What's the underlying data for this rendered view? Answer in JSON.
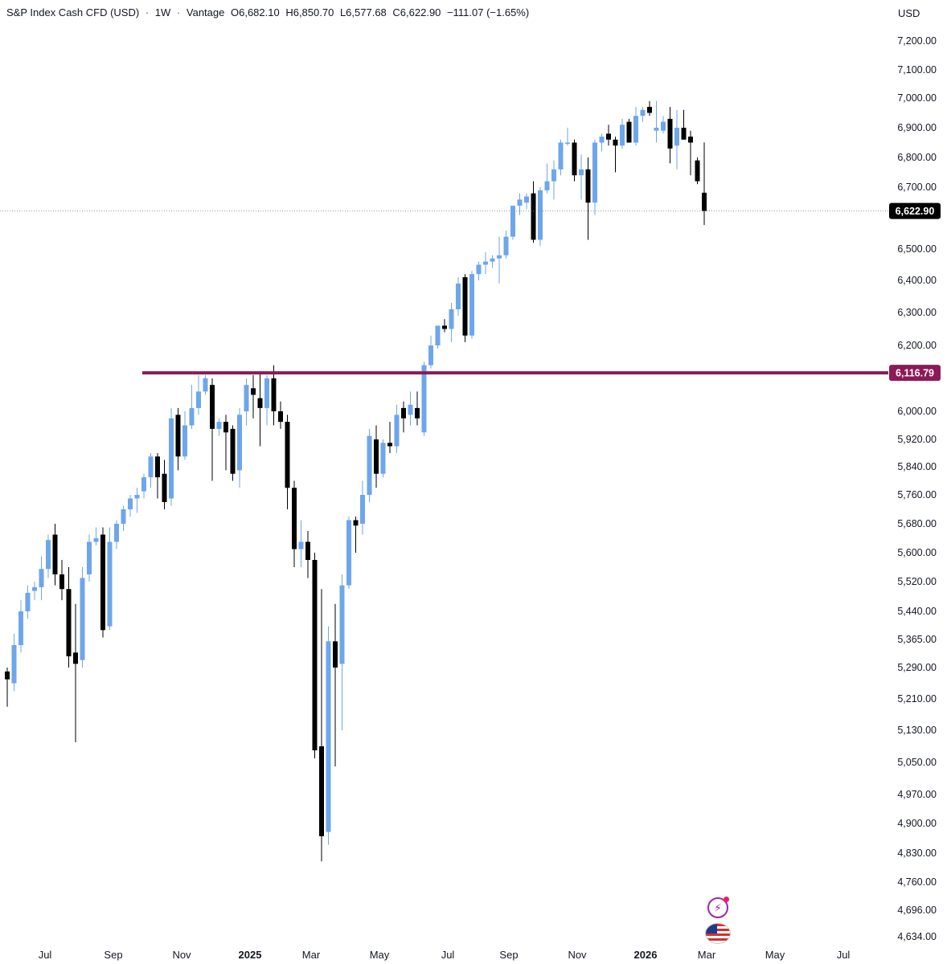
{
  "header": {
    "symbol": "S&P Index Cash CFD (USD)",
    "interval": "1W",
    "source": "Vantage",
    "open": "O6,682.10",
    "high": "H6,850.70",
    "low": "L6,577.68",
    "close": "C6,622.90",
    "change": "−111.07 (−1.65%)",
    "separator": "·"
  },
  "currency": "USD",
  "colors": {
    "up": "#6ea6ea",
    "down": "#000000",
    "hline": "#8b1a55",
    "last_price_tag": "#000000",
    "hline_tag": "#8b1a55"
  },
  "icons": [
    "bolt-icon",
    "us-flag-icon"
  ],
  "chart_data": {
    "type": "candlestick",
    "y_tick_labels": [
      "7,200.00",
      "7,100.00",
      "7,000.00",
      "6,900.00",
      "6,800.00",
      "6,700.00",
      "6,500.00",
      "6,400.00",
      "6,300.00",
      "6,200.00",
      "6,000.00",
      "5,920.00",
      "5,840.00",
      "5,760.00",
      "5,680.00",
      "5,600.00",
      "5,520.00",
      "5,440.00",
      "5,365.00",
      "5,290.00",
      "5,210.00",
      "5,130.00",
      "5,050.00",
      "4,970.00",
      "4,900.00",
      "4,830.00",
      "4,760.00",
      "4,696.00",
      "4,634.00"
    ],
    "y_tick_values": [
      7200,
      7100,
      7000,
      6900,
      6800,
      6700,
      6500,
      6400,
      6300,
      6200,
      6000,
      5920,
      5840,
      5760,
      5680,
      5600,
      5520,
      5440,
      5365,
      5290,
      5210,
      5130,
      5050,
      4970,
      4900,
      4830,
      4760,
      4696,
      4634
    ],
    "x_tick_labels": [
      "Jul",
      "Sep",
      "Nov",
      "2025",
      "Mar",
      "May",
      "Jul",
      "Sep",
      "Nov",
      "2026",
      "Mar",
      "May",
      "Jul"
    ],
    "x_tick_bold": [
      false,
      false,
      false,
      true,
      false,
      false,
      false,
      false,
      false,
      true,
      false,
      false,
      false
    ],
    "last_price": {
      "label": "6,622.90",
      "value": 6622.9
    },
    "horizontal_line": {
      "label": "6,116.79",
      "value": 6116.79
    },
    "candles": [
      {
        "o": 5280,
        "h": 5290,
        "l": 5190,
        "c": 5260
      },
      {
        "o": 5250,
        "h": 5380,
        "l": 5230,
        "c": 5350
      },
      {
        "o": 5350,
        "h": 5470,
        "l": 5330,
        "c": 5440
      },
      {
        "o": 5440,
        "h": 5510,
        "l": 5420,
        "c": 5490
      },
      {
        "o": 5495,
        "h": 5520,
        "l": 5470,
        "c": 5505
      },
      {
        "o": 5505,
        "h": 5590,
        "l": 5470,
        "c": 5555
      },
      {
        "o": 5555,
        "h": 5650,
        "l": 5530,
        "c": 5635
      },
      {
        "o": 5650,
        "h": 5680,
        "l": 5510,
        "c": 5540
      },
      {
        "o": 5540,
        "h": 5580,
        "l": 5470,
        "c": 5500
      },
      {
        "o": 5500,
        "h": 5560,
        "l": 5290,
        "c": 5320
      },
      {
        "o": 5330,
        "h": 5460,
        "l": 5100,
        "c": 5300
      },
      {
        "o": 5310,
        "h": 5560,
        "l": 5290,
        "c": 5530
      },
      {
        "o": 5540,
        "h": 5650,
        "l": 5520,
        "c": 5630
      },
      {
        "o": 5630,
        "h": 5670,
        "l": 5620,
        "c": 5640
      },
      {
        "o": 5650,
        "h": 5670,
        "l": 5370,
        "c": 5390
      },
      {
        "o": 5400,
        "h": 5670,
        "l": 5390,
        "c": 5630
      },
      {
        "o": 5630,
        "h": 5690,
        "l": 5610,
        "c": 5680
      },
      {
        "o": 5680,
        "h": 5730,
        "l": 5660,
        "c": 5720
      },
      {
        "o": 5720,
        "h": 5760,
        "l": 5700,
        "c": 5750
      },
      {
        "o": 5750,
        "h": 5780,
        "l": 5710,
        "c": 5760
      },
      {
        "o": 5770,
        "h": 5820,
        "l": 5750,
        "c": 5810
      },
      {
        "o": 5810,
        "h": 5880,
        "l": 5780,
        "c": 5870
      },
      {
        "o": 5870,
        "h": 5880,
        "l": 5750,
        "c": 5810
      },
      {
        "o": 5820,
        "h": 5860,
        "l": 5720,
        "c": 5740
      },
      {
        "o": 5750,
        "h": 6010,
        "l": 5730,
        "c": 5980
      },
      {
        "o": 5990,
        "h": 6010,
        "l": 5830,
        "c": 5870
      },
      {
        "o": 5870,
        "h": 6000,
        "l": 5860,
        "c": 5960
      },
      {
        "o": 5960,
        "h": 6080,
        "l": 5950,
        "c": 6010
      },
      {
        "o": 6010,
        "h": 6110,
        "l": 5990,
        "c": 6060
      },
      {
        "o": 6060,
        "h": 6110,
        "l": 6050,
        "c": 6100
      },
      {
        "o": 6080,
        "h": 6100,
        "l": 5800,
        "c": 5950
      },
      {
        "o": 5950,
        "h": 5980,
        "l": 5930,
        "c": 5970
      },
      {
        "o": 5970,
        "h": 5990,
        "l": 5830,
        "c": 5940
      },
      {
        "o": 5950,
        "h": 5960,
        "l": 5800,
        "c": 5820
      },
      {
        "o": 5830,
        "h": 6010,
        "l": 5780,
        "c": 5990
      },
      {
        "o": 6000,
        "h": 6100,
        "l": 5960,
        "c": 6080
      },
      {
        "o": 6070,
        "h": 6110,
        "l": 5980,
        "c": 6050
      },
      {
        "o": 6040,
        "h": 6120,
        "l": 5900,
        "c": 6010
      },
      {
        "o": 6010,
        "h": 6110,
        "l": 5960,
        "c": 6100
      },
      {
        "o": 6100,
        "h": 6140,
        "l": 5960,
        "c": 6000
      },
      {
        "o": 6000,
        "h": 6030,
        "l": 5950,
        "c": 5970
      },
      {
        "o": 5970,
        "h": 5990,
        "l": 5720,
        "c": 5780
      },
      {
        "o": 5780,
        "h": 5800,
        "l": 5560,
        "c": 5610
      },
      {
        "o": 5610,
        "h": 5690,
        "l": 5560,
        "c": 5630
      },
      {
        "o": 5630,
        "h": 5660,
        "l": 5530,
        "c": 5580
      },
      {
        "o": 5580,
        "h": 5600,
        "l": 5060,
        "c": 5080
      },
      {
        "o": 5090,
        "h": 5500,
        "l": 4810,
        "c": 4870
      },
      {
        "o": 4880,
        "h": 5400,
        "l": 4850,
        "c": 5360
      },
      {
        "o": 5360,
        "h": 5460,
        "l": 5040,
        "c": 5290
      },
      {
        "o": 5300,
        "h": 5540,
        "l": 5130,
        "c": 5510
      },
      {
        "o": 5510,
        "h": 5700,
        "l": 5500,
        "c": 5690
      },
      {
        "o": 5690,
        "h": 5700,
        "l": 5600,
        "c": 5675
      },
      {
        "o": 5680,
        "h": 5800,
        "l": 5650,
        "c": 5760
      },
      {
        "o": 5760,
        "h": 5950,
        "l": 5740,
        "c": 5930
      },
      {
        "o": 5920,
        "h": 5960,
        "l": 5780,
        "c": 5820
      },
      {
        "o": 5820,
        "h": 5920,
        "l": 5810,
        "c": 5910
      },
      {
        "o": 5910,
        "h": 5970,
        "l": 5880,
        "c": 5900
      },
      {
        "o": 5900,
        "h": 6020,
        "l": 5880,
        "c": 5990
      },
      {
        "o": 6010,
        "h": 6030,
        "l": 5940,
        "c": 5980
      },
      {
        "o": 5990,
        "h": 6060,
        "l": 5960,
        "c": 6020
      },
      {
        "o": 6010,
        "h": 6060,
        "l": 5960,
        "c": 5980
      },
      {
        "o": 5940,
        "h": 6150,
        "l": 5930,
        "c": 6140
      },
      {
        "o": 6140,
        "h": 6230,
        "l": 6130,
        "c": 6200
      },
      {
        "o": 6200,
        "h": 6260,
        "l": 6190,
        "c": 6260
      },
      {
        "o": 6260,
        "h": 6280,
        "l": 6240,
        "c": 6250
      },
      {
        "o": 6250,
        "h": 6330,
        "l": 6210,
        "c": 6310
      },
      {
        "o": 6310,
        "h": 6410,
        "l": 6290,
        "c": 6390
      },
      {
        "o": 6410,
        "h": 6420,
        "l": 6210,
        "c": 6230
      },
      {
        "o": 6230,
        "h": 6430,
        "l": 6220,
        "c": 6420
      },
      {
        "o": 6420,
        "h": 6460,
        "l": 6400,
        "c": 6450
      },
      {
        "o": 6450,
        "h": 6490,
        "l": 6420,
        "c": 6460
      },
      {
        "o": 6460,
        "h": 6480,
        "l": 6440,
        "c": 6470
      },
      {
        "o": 6470,
        "h": 6540,
        "l": 6390,
        "c": 6480
      },
      {
        "o": 6480,
        "h": 6560,
        "l": 6470,
        "c": 6540
      },
      {
        "o": 6540,
        "h": 6640,
        "l": 6530,
        "c": 6640
      },
      {
        "o": 6640,
        "h": 6680,
        "l": 6610,
        "c": 6660
      },
      {
        "o": 6650,
        "h": 6680,
        "l": 6630,
        "c": 6670
      },
      {
        "o": 6680,
        "h": 6720,
        "l": 6520,
        "c": 6530
      },
      {
        "o": 6530,
        "h": 6700,
        "l": 6510,
        "c": 6690
      },
      {
        "o": 6690,
        "h": 6780,
        "l": 6680,
        "c": 6720
      },
      {
        "o": 6720,
        "h": 6790,
        "l": 6660,
        "c": 6760
      },
      {
        "o": 6760,
        "h": 6860,
        "l": 6740,
        "c": 6850
      },
      {
        "o": 6850,
        "h": 6900,
        "l": 6840,
        "c": 6850
      },
      {
        "o": 6850,
        "h": 6860,
        "l": 6720,
        "c": 6740
      },
      {
        "o": 6740,
        "h": 6810,
        "l": 6660,
        "c": 6760
      },
      {
        "o": 6760,
        "h": 6800,
        "l": 6530,
        "c": 6650
      },
      {
        "o": 6650,
        "h": 6860,
        "l": 6610,
        "c": 6850
      },
      {
        "o": 6850,
        "h": 6880,
        "l": 6820,
        "c": 6870
      },
      {
        "o": 6880,
        "h": 6910,
        "l": 6840,
        "c": 6860
      },
      {
        "o": 6860,
        "h": 6870,
        "l": 6750,
        "c": 6840
      },
      {
        "o": 6840,
        "h": 6930,
        "l": 6830,
        "c": 6910
      },
      {
        "o": 6920,
        "h": 6930,
        "l": 6850,
        "c": 6850
      },
      {
        "o": 6850,
        "h": 6970,
        "l": 6840,
        "c": 6940
      },
      {
        "o": 6940,
        "h": 6970,
        "l": 6920,
        "c": 6960
      },
      {
        "o": 6970,
        "h": 6990,
        "l": 6940,
        "c": 6950
      },
      {
        "o": 6890,
        "h": 6990,
        "l": 6850,
        "c": 6900
      },
      {
        "o": 6890,
        "h": 6940,
        "l": 6880,
        "c": 6920
      },
      {
        "o": 6930,
        "h": 6970,
        "l": 6780,
        "c": 6830
      },
      {
        "o": 6840,
        "h": 6960,
        "l": 6760,
        "c": 6900
      },
      {
        "o": 6900,
        "h": 6960,
        "l": 6860,
        "c": 6860
      },
      {
        "o": 6870,
        "h": 6890,
        "l": 6740,
        "c": 6850
      },
      {
        "o": 6790,
        "h": 6800,
        "l": 6710,
        "c": 6720
      },
      {
        "o": 6682.1,
        "h": 6850.7,
        "l": 6577.68,
        "c": 6622.9
      }
    ]
  }
}
